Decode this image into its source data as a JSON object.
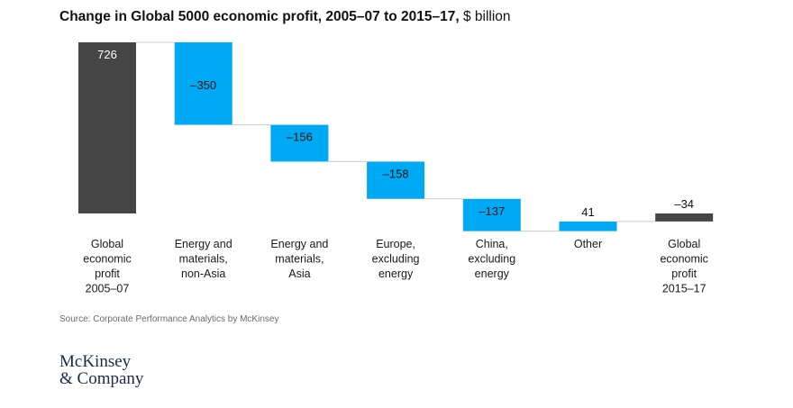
{
  "title": {
    "bold": "Change in Global 5000 economic profit, 2005–07 to 2015–17,",
    "unit": " $ billion"
  },
  "source": "Source: Corporate Performance Analytics by McKinsey",
  "logo": {
    "line1": "McKinsey",
    "line2": "& Company"
  },
  "colors": {
    "total": "#454545",
    "change": "#00A9F4",
    "connector": "#cccccc",
    "label_dark": "#ffffff",
    "label_light": "#111111"
  },
  "chart_data": {
    "type": "bar",
    "subtype": "waterfall",
    "title": "Change in Global 5000 economic profit, 2005–07 to 2015–17, $ billion",
    "categories": [
      [
        "Global",
        "economic",
        "profit",
        "2005–07"
      ],
      [
        "Energy and",
        "materials,",
        "non-Asia"
      ],
      [
        "Energy and",
        "materials,",
        "Asia"
      ],
      [
        "Europe,",
        "excluding",
        "energy"
      ],
      [
        "China,",
        "excluding",
        "energy"
      ],
      [
        "Other"
      ],
      [
        "Global",
        "economic",
        "profit",
        "2015–17"
      ]
    ],
    "values": [
      726,
      -350,
      -156,
      -158,
      -137,
      41,
      -34
    ],
    "value_labels": [
      "726",
      "–350",
      "–156",
      "–158",
      "–137",
      "41",
      "–34"
    ],
    "kinds": [
      "total",
      "change",
      "change",
      "change",
      "change",
      "change",
      "total"
    ],
    "ylim": [
      -34,
      726
    ]
  }
}
